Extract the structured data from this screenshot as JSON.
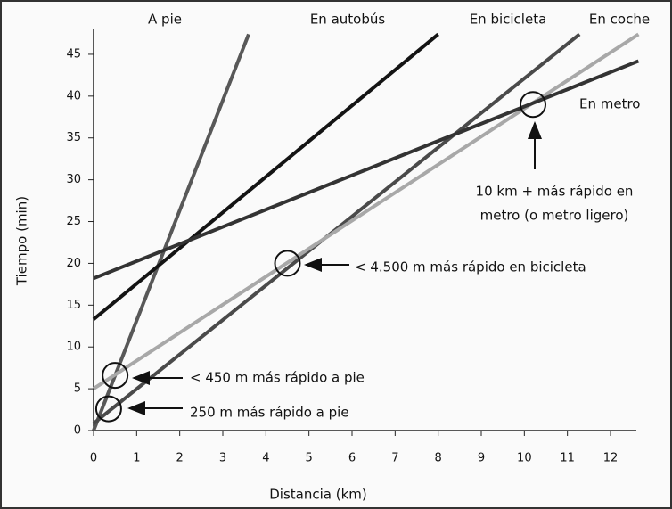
{
  "chart_data": {
    "type": "line",
    "xlabel": "Distancia (km)",
    "ylabel": "Tiempo (min)",
    "xlim": [
      0,
      12.6
    ],
    "ylim": [
      0,
      47.5
    ],
    "xticks": [
      0,
      1,
      2,
      3,
      4,
      5,
      6,
      7,
      8,
      9,
      10,
      11,
      12
    ],
    "yticks": [
      0,
      5,
      10,
      15,
      20,
      25,
      30,
      35,
      40,
      45
    ],
    "series": [
      {
        "name": "A pie",
        "color": "#585858",
        "x": [
          0,
          3.6
        ],
        "values": [
          0,
          47.4
        ]
      },
      {
        "name": "En autobús",
        "color": "#141414",
        "x": [
          0,
          8
        ],
        "values": [
          13.3,
          47.4
        ]
      },
      {
        "name": "En bicicleta",
        "color": "#4a4a4a",
        "x": [
          0,
          11.28
        ],
        "values": [
          0.85,
          47.4
        ]
      },
      {
        "name": "En coche",
        "color": "#a8a8a8",
        "x": [
          0,
          12.65
        ],
        "values": [
          5,
          47.4
        ]
      },
      {
        "name": "En metro",
        "color": "#333333",
        "x": [
          0,
          12.65
        ],
        "values": [
          18.2,
          44.2
        ]
      }
    ],
    "annotations": [
      {
        "text": [
          "250 m más rápido a pie"
        ],
        "x": 0.35,
        "y": 2.6
      },
      {
        "text": [
          "< 450 m más rápido a pie"
        ],
        "x": 0.5,
        "y": 6.6
      },
      {
        "text": [
          "< 4.500 m más rápido en bicicleta"
        ],
        "x": 4.5,
        "y": 20
      },
      {
        "text": [
          "10 km + más rápido en",
          "metro (o metro ligero)"
        ],
        "x": 10.2,
        "y": 39
      }
    ]
  }
}
